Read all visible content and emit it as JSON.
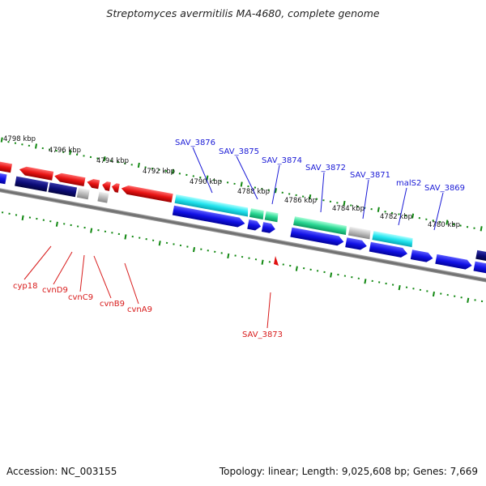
{
  "title": "Streptomyces avermitilis MA-4680, complete genome",
  "footer": {
    "accession": "Accession: NC_003155",
    "topology": "Topology: linear; Length: 9,025,608 bp; Genes: 7,669"
  },
  "colors": {
    "forward_strand": "#1010e0",
    "reverse_strand": "#e01010",
    "cyan_feature": "#22e0e8",
    "green_feature": "#28d890",
    "grey_feature": "#b8b8b8",
    "dark_navy": "#0c0c78",
    "scale_tick": "#118811",
    "blue_label": "#1a1ad6",
    "red_label": "#d81a1a"
  },
  "scale_labels": [
    "4798 kbp",
    "4796 kbp",
    "4794 kbp",
    "4792 kbp",
    "4790 kbp",
    "4788 kbp",
    "4786 kbp",
    "4784 kbp",
    "4782 kbp",
    "4780 kbp"
  ],
  "top_gene_labels": [
    "SAV_3876",
    "SAV_3875",
    "SAV_3874",
    "SAV_3872",
    "SAV_3871",
    "malS2",
    "SAV_3869"
  ],
  "bottom_gene_labels": [
    "cyp18",
    "cvnD9",
    "cvnC9",
    "cvnB9",
    "cvnA9",
    "SAV_3873"
  ]
}
